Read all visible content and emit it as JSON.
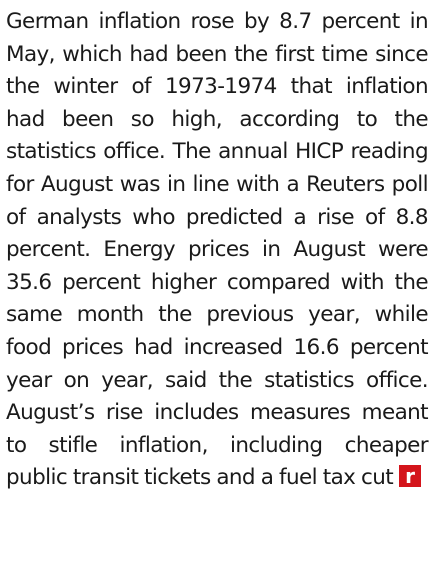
{
  "article": {
    "paragraph": "German inflation rose by 8.7 percent in May, which had been the first time since the winter of 1973-1974 that inflation had been so high, according to the statistics office. The annual HICP reading for August was in line with a Reuters poll of analysts who predicted a rise of 8.8 percent. Energy prices in August were 35.6 percent higher compared with the same month the previous year, while food prices had increased 16.6 percent year on year, said the statistics office. August’s rise includes measures meant to stifle inflation, including cheaper public transit tickets and a fuel tax cut",
    "end_mark": "r"
  }
}
